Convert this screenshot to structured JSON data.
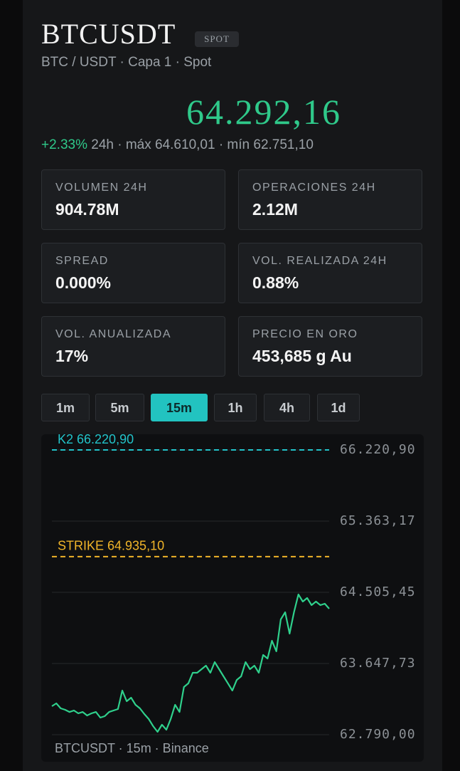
{
  "header": {
    "title": "BTCUSDT",
    "badge": "SPOT",
    "subtitle": "BTC / USDT · Capa 1 · Spot"
  },
  "price": {
    "value": "64.292,16",
    "change": "+2.33%",
    "range": "24h · máx 64.610,01 · mín 62.751,10"
  },
  "stats": [
    {
      "label": "VOLUMEN 24H",
      "value": "904.78M"
    },
    {
      "label": "OPERACIONES 24H",
      "value": "2.12M"
    },
    {
      "label": "SPREAD",
      "value": "0.000%"
    },
    {
      "label": "VOL. REALIZADA 24H",
      "value": "0.88%"
    },
    {
      "label": "VOL. ANUALIZADA",
      "value": "17%"
    },
    {
      "label": "PRECIO EN ORO",
      "value": "453,685 g Au"
    }
  ],
  "timeframes": {
    "options": [
      "1m",
      "5m",
      "15m",
      "1h",
      "4h",
      "1d"
    ],
    "active": 2
  },
  "chart_data": {
    "type": "line",
    "footer": "BTCUSDT · 15m · Binance",
    "series": [
      {
        "color": "#2fd08c",
        "values": [
          63133,
          63167,
          63107,
          63090,
          63064,
          63082,
          63047,
          63064,
          63022,
          63047,
          63064,
          62996,
          63013,
          63064,
          63082,
          63099,
          63322,
          63193,
          63236,
          63150,
          63107,
          63039,
          62979,
          62893,
          62824,
          62910,
          62850,
          62979,
          63150,
          63064,
          63365,
          63408,
          63536,
          63536,
          63579,
          63622,
          63536,
          63665,
          63579,
          63493,
          63408,
          63322,
          63450,
          63493,
          63665,
          63579,
          63622,
          63536,
          63751,
          63708,
          63922,
          63794,
          64179,
          64265,
          64008,
          64265,
          64480,
          64394,
          64437,
          64351,
          64394,
          64351,
          64368,
          64308
        ]
      }
    ],
    "ylim": [
      62790.0,
      66220.9
    ],
    "yticks": [
      {
        "value": 62790.0,
        "label": "62.790,00"
      },
      {
        "value": 63647.73,
        "label": "63.647,73"
      },
      {
        "value": 64505.45,
        "label": "64.505,45"
      },
      {
        "value": 65363.17,
        "label": "65.363,17"
      },
      {
        "value": 66220.9,
        "label": "66.220,90"
      }
    ],
    "grid": true,
    "reference_lines": [
      {
        "label": "K2 66.220,90",
        "value": 66220.9,
        "color": "#22c3c9"
      },
      {
        "label": "STRIKE 64.935,10",
        "value": 64935.1,
        "color": "#f0b429"
      }
    ]
  }
}
